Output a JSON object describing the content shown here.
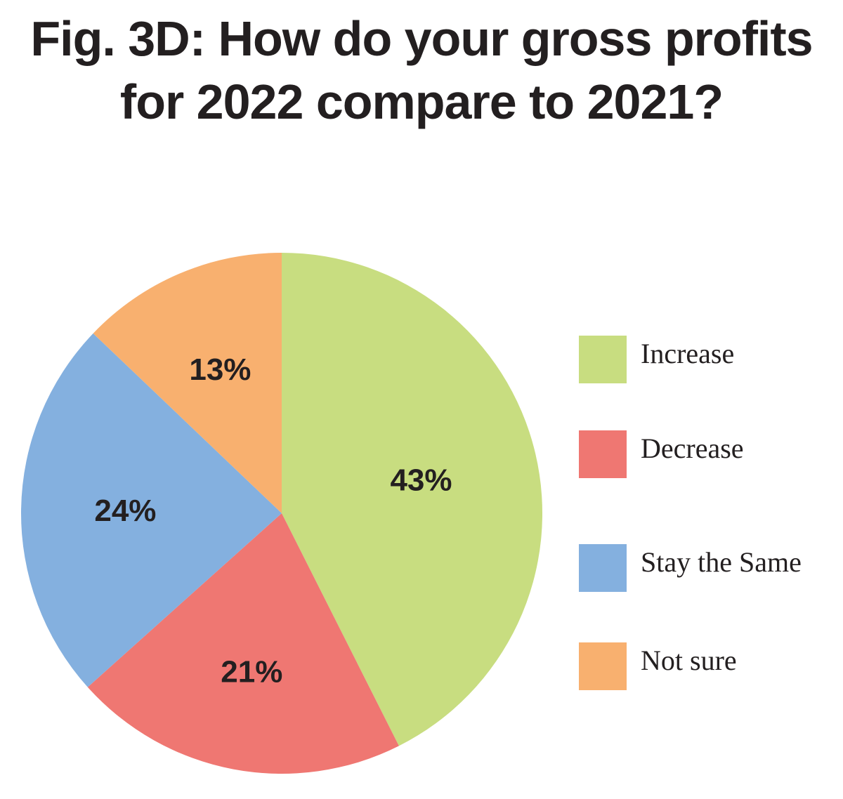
{
  "chart_data": {
    "type": "pie",
    "title_lines": [
      "Fig. 3D: How do your gross profits",
      "for 2022 compare to 2021?"
    ],
    "legend_position": "right",
    "slices": [
      {
        "label": "Increase",
        "value": 43,
        "display": "43%",
        "color": "#c8dd80"
      },
      {
        "label": "Decrease",
        "value": 21,
        "display": "21%",
        "color": "#ef7772"
      },
      {
        "label": "Stay the Same",
        "value": 24,
        "display": "24%",
        "color": "#84b0df"
      },
      {
        "label": "Not sure",
        "value": 13,
        "display": "13%",
        "color": "#f8b06f"
      }
    ]
  }
}
